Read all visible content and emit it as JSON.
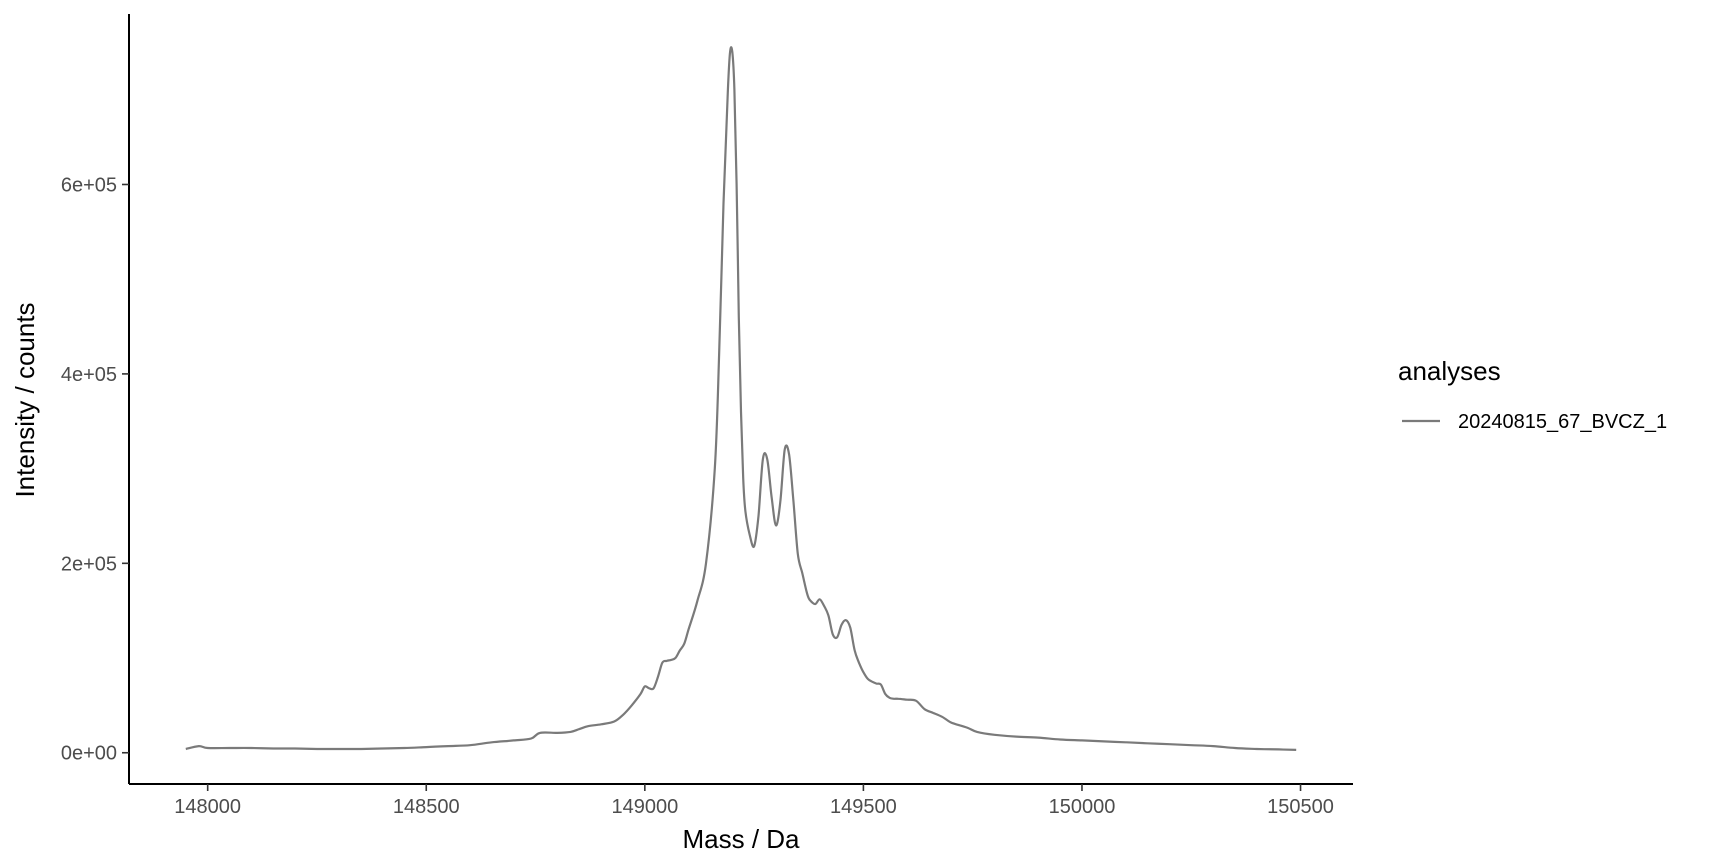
{
  "chart_data": {
    "type": "line",
    "xlabel": "Mass / Da",
    "ylabel": "Intensity / counts",
    "xlim": [
      147820,
      150620
    ],
    "ylim": [
      -33000,
      780000
    ],
    "x_ticks": [
      148000,
      148500,
      149000,
      149500,
      150000,
      150500
    ],
    "x_tick_labels": [
      "148000",
      "148500",
      "149000",
      "149500",
      "150000",
      "150500"
    ],
    "y_ticks": [
      0,
      200000,
      400000,
      600000
    ],
    "y_tick_labels": [
      "0e+00",
      "2e+05",
      "4e+05",
      "6e+05"
    ],
    "grid": false,
    "legend": {
      "title": "analyses",
      "position": "right"
    },
    "series": [
      {
        "name": "20240815_67_BVCZ_1",
        "color": "#7a7a7a",
        "x": [
          147950,
          147980,
          148000,
          148050,
          148100,
          148150,
          148200,
          148250,
          148300,
          148350,
          148400,
          148450,
          148500,
          148550,
          148600,
          148650,
          148700,
          148740,
          148760,
          148800,
          148830,
          148850,
          148870,
          148900,
          148930,
          148950,
          148970,
          148990,
          149000,
          149010,
          149020,
          149030,
          149040,
          149050,
          149060,
          149070,
          149080,
          149090,
          149100,
          149120,
          149140,
          149160,
          149170,
          149180,
          149190,
          149195,
          149200,
          149205,
          149210,
          149215,
          149220,
          149225,
          149230,
          149240,
          149250,
          149260,
          149270,
          149280,
          149290,
          149300,
          149310,
          149320,
          149330,
          149340,
          149350,
          149360,
          149370,
          149375,
          149380,
          149390,
          149400,
          149410,
          149420,
          149430,
          149440,
          149450,
          149460,
          149470,
          149480,
          149490,
          149500,
          149510,
          149520,
          149530,
          149540,
          149550,
          149560,
          149570,
          149580,
          149600,
          149620,
          149640,
          149660,
          149680,
          149700,
          149720,
          149740,
          149760,
          149800,
          149850,
          149900,
          149950,
          150000,
          150050,
          150100,
          150150,
          150200,
          150250,
          150300,
          150350,
          150400,
          150450,
          150490
        ],
        "y": [
          4000,
          7000,
          5000,
          5000,
          5000,
          4500,
          4500,
          4000,
          4000,
          4000,
          4500,
          5000,
          6000,
          7000,
          8000,
          11000,
          13000,
          15000,
          21000,
          21000,
          22000,
          25000,
          28000,
          30000,
          33000,
          40000,
          50000,
          62000,
          70000,
          68000,
          68000,
          80000,
          95000,
          97000,
          98000,
          100000,
          108000,
          115000,
          130000,
          160000,
          200000,
          300000,
          420000,
          580000,
          700000,
          740000,
          740000,
          700000,
          600000,
          460000,
          360000,
          290000,
          255000,
          230000,
          218000,
          250000,
          310000,
          310000,
          270000,
          240000,
          265000,
          320000,
          315000,
          265000,
          210000,
          190000,
          170000,
          163000,
          160000,
          157000,
          162000,
          155000,
          145000,
          125000,
          122000,
          135000,
          140000,
          132000,
          108000,
          95000,
          85000,
          78000,
          75000,
          73000,
          72000,
          62000,
          58000,
          57000,
          57000,
          56000,
          55000,
          46000,
          42000,
          38000,
          32000,
          29000,
          26000,
          22000,
          19000,
          17000,
          16000,
          14000,
          13000,
          12000,
          11000,
          10000,
          9000,
          8000,
          7000,
          5000,
          4000,
          3500,
          3000
        ]
      }
    ]
  }
}
